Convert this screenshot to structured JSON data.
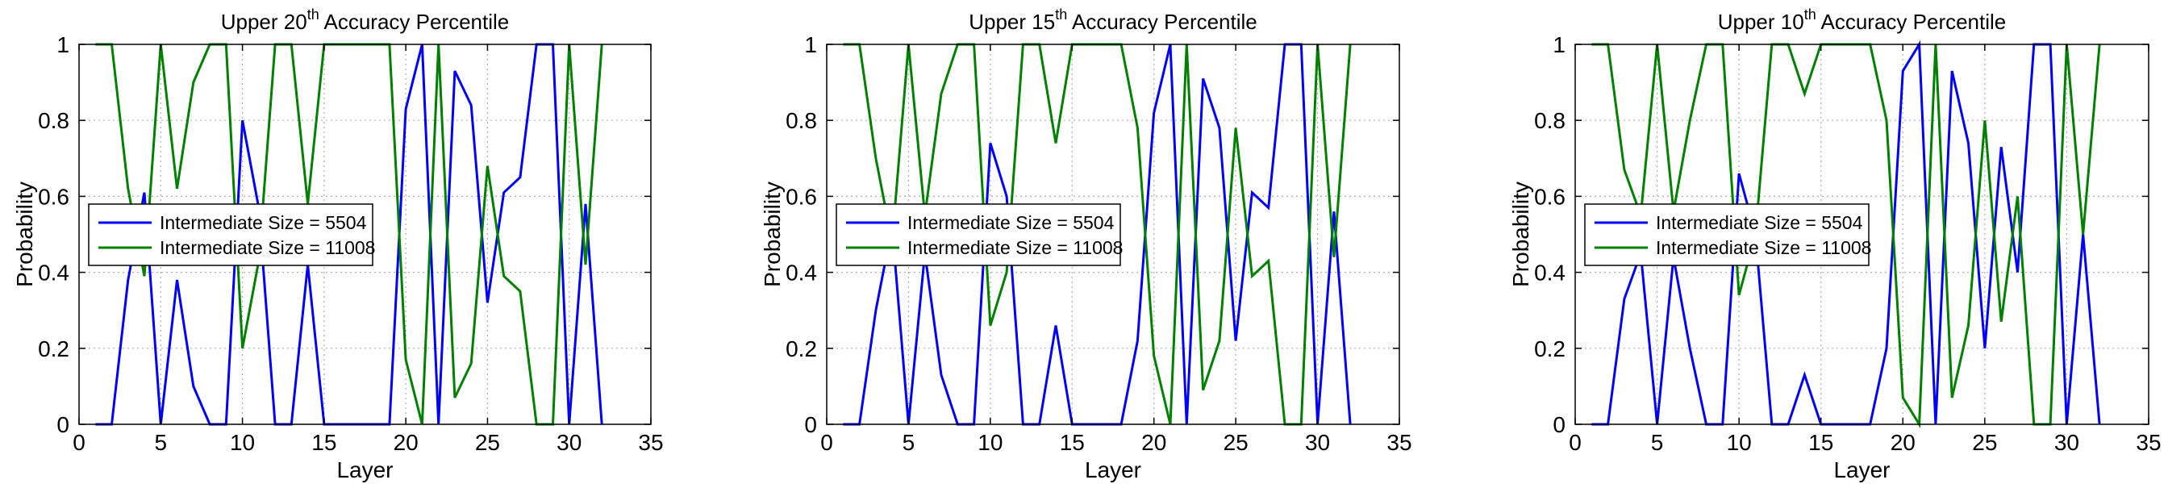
{
  "colors": {
    "series1": "#0000ff",
    "series2": "#008000",
    "grid": "#b0b0b0",
    "axis": "#000000"
  },
  "chart_data": [
    {
      "type": "line",
      "title_prefix": "Upper 20",
      "title_sup": "th",
      "title_suffix": " Accuracy Percentile",
      "xlabel": "Layer",
      "ylabel": "Probability",
      "xlim": [
        0,
        35
      ],
      "ylim": [
        0,
        1
      ],
      "xticks": [
        0,
        5,
        10,
        15,
        20,
        25,
        30,
        35
      ],
      "yticks": [
        0,
        0.2,
        0.4,
        0.6,
        0.8,
        1
      ],
      "grid": true,
      "legend_position": "left-middle",
      "x": [
        1,
        2,
        3,
        4,
        5,
        6,
        7,
        8,
        9,
        10,
        11,
        12,
        13,
        14,
        15,
        16,
        17,
        18,
        19,
        20,
        21,
        22,
        23,
        24,
        25,
        26,
        27,
        28,
        29,
        30,
        31,
        32
      ],
      "series": [
        {
          "name": "Intermediate Size = 5504",
          "values": [
            0,
            0,
            0.38,
            0.61,
            0,
            0.38,
            0.1,
            0,
            0,
            0.8,
            0.57,
            0,
            0,
            0.42,
            0,
            0,
            0,
            0,
            0,
            0.83,
            1,
            0,
            0.93,
            0.84,
            0.32,
            0.61,
            0.65,
            1,
            1,
            0,
            0.58,
            0
          ]
        },
        {
          "name": "Intermediate Size = 11008",
          "values": [
            1,
            1,
            0.62,
            0.39,
            1,
            0.62,
            0.9,
            1,
            1,
            0.2,
            0.43,
            1,
            1,
            0.58,
            1,
            1,
            1,
            1,
            1,
            0.17,
            0,
            1,
            0.07,
            0.16,
            0.68,
            0.39,
            0.35,
            0,
            0,
            1,
            0.42,
            1
          ]
        }
      ]
    },
    {
      "type": "line",
      "title_prefix": "Upper 15",
      "title_sup": "th",
      "title_suffix": " Accuracy Percentile",
      "xlabel": "Layer",
      "ylabel": "Probability",
      "xlim": [
        0,
        35
      ],
      "ylim": [
        0,
        1
      ],
      "xticks": [
        0,
        5,
        10,
        15,
        20,
        25,
        30,
        35
      ],
      "yticks": [
        0,
        0.2,
        0.4,
        0.6,
        0.8,
        1
      ],
      "grid": true,
      "legend_position": "left-middle",
      "x": [
        1,
        2,
        3,
        4,
        5,
        6,
        7,
        8,
        9,
        10,
        11,
        12,
        13,
        14,
        15,
        16,
        17,
        18,
        19,
        20,
        21,
        22,
        23,
        24,
        25,
        26,
        27,
        28,
        29,
        30,
        31,
        32
      ],
      "series": [
        {
          "name": "Intermediate Size = 5504",
          "values": [
            0,
            0,
            0.3,
            0.52,
            0,
            0.45,
            0.13,
            0,
            0,
            0.74,
            0.6,
            0,
            0,
            0.26,
            0,
            0,
            0,
            0,
            0.22,
            0.82,
            1,
            0,
            0.91,
            0.78,
            0.22,
            0.61,
            0.57,
            1,
            1,
            0,
            0.56,
            0
          ]
        },
        {
          "name": "Intermediate Size = 11008",
          "values": [
            1,
            1,
            0.7,
            0.48,
            1,
            0.55,
            0.87,
            1,
            1,
            0.26,
            0.4,
            1,
            1,
            0.74,
            1,
            1,
            1,
            1,
            0.78,
            0.18,
            0,
            1,
            0.09,
            0.22,
            0.78,
            0.39,
            0.43,
            0,
            0,
            1,
            0.44,
            1
          ]
        }
      ]
    },
    {
      "type": "line",
      "title_prefix": "Upper 10",
      "title_sup": "th",
      "title_suffix": " Accuracy Percentile",
      "xlabel": "Layer",
      "ylabel": "Probability",
      "xlim": [
        0,
        35
      ],
      "ylim": [
        0,
        1
      ],
      "xticks": [
        0,
        5,
        10,
        15,
        20,
        25,
        30,
        35
      ],
      "yticks": [
        0,
        0.2,
        0.4,
        0.6,
        0.8,
        1
      ],
      "grid": true,
      "legend_position": "left-middle",
      "x": [
        1,
        2,
        3,
        4,
        5,
        6,
        7,
        8,
        9,
        10,
        11,
        12,
        13,
        14,
        15,
        16,
        17,
        18,
        19,
        20,
        21,
        22,
        23,
        24,
        25,
        26,
        27,
        28,
        29,
        30,
        31,
        32
      ],
      "series": [
        {
          "name": "Intermediate Size = 5504",
          "values": [
            0,
            0,
            0.33,
            0.45,
            0,
            0.44,
            0.2,
            0,
            0,
            0.66,
            0.5,
            0,
            0,
            0.13,
            0,
            0,
            0,
            0,
            0.2,
            0.93,
            1,
            0,
            0.93,
            0.74,
            0.2,
            0.73,
            0.4,
            1,
            1,
            0,
            0.5,
            0
          ]
        },
        {
          "name": "Intermediate Size = 11008",
          "values": [
            1,
            1,
            0.67,
            0.55,
            1,
            0.56,
            0.8,
            1,
            1,
            0.34,
            0.5,
            1,
            1,
            0.87,
            1,
            1,
            1,
            1,
            0.8,
            0.07,
            0,
            1,
            0.07,
            0.26,
            0.8,
            0.27,
            0.6,
            0,
            0,
            1,
            0.5,
            1
          ]
        }
      ]
    }
  ]
}
